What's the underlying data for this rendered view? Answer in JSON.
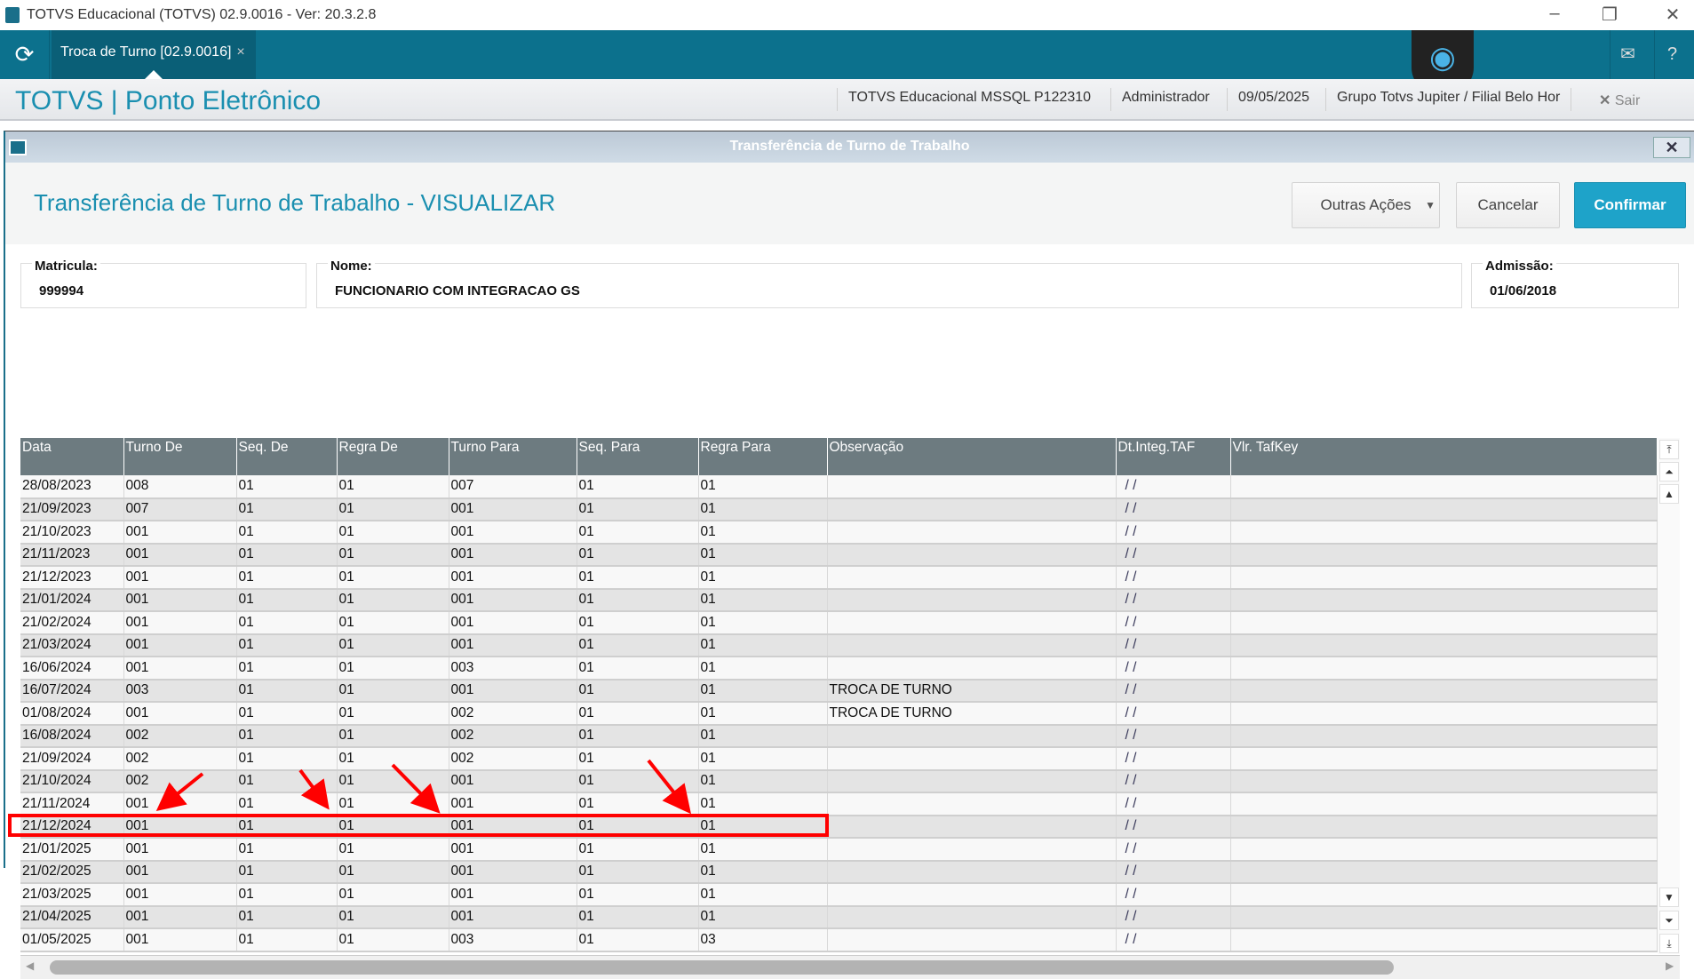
{
  "window": {
    "title": "TOTVS Educacional (TOTVS) 02.9.0016 - Ver: 20.3.2.8"
  },
  "tabbar": {
    "tab_label": "Troca de Turno [02.9.0016]",
    "tab_close": "×"
  },
  "header": {
    "app_title": "TOTVS | Ponto Eletrônico",
    "database": "TOTVS Educacional MSSQL P122310",
    "user": "Administrador",
    "date": "09/05/2025",
    "branch": "Grupo Totvs Jupiter / Filial Belo Hor",
    "logout": "Sair"
  },
  "dialog": {
    "title": "Transferência de Turno de Trabalho",
    "heading": "Transferência de Turno de Trabalho - VISUALIZAR",
    "other_actions": "Outras Ações",
    "cancel": "Cancelar",
    "confirm": "Confirmar"
  },
  "form": {
    "matricula_label": "Matricula:",
    "matricula": "999994",
    "nome_label": "Nome:",
    "nome": "FUNCIONARIO COM INTEGRACAO GS",
    "admissao_label": "Admissão:",
    "admissao": "01/06/2018"
  },
  "grid": {
    "columns": [
      "Data",
      "Turno De",
      "Seq. De",
      "Regra De",
      "Turno Para",
      "Seq. Para",
      "Regra Para",
      "Observação",
      "Dt.Integ.TAF",
      "Vlr. TafKey"
    ],
    "rows": [
      [
        "28/08/2023",
        "008",
        "01",
        "01",
        "007",
        "01",
        "01",
        "",
        "/ /",
        ""
      ],
      [
        "21/09/2023",
        "007",
        "01",
        "01",
        "001",
        "01",
        "01",
        "",
        "/ /",
        ""
      ],
      [
        "21/10/2023",
        "001",
        "01",
        "01",
        "001",
        "01",
        "01",
        "",
        "/ /",
        ""
      ],
      [
        "21/11/2023",
        "001",
        "01",
        "01",
        "001",
        "01",
        "01",
        "",
        "/ /",
        ""
      ],
      [
        "21/12/2023",
        "001",
        "01",
        "01",
        "001",
        "01",
        "01",
        "",
        "/ /",
        ""
      ],
      [
        "21/01/2024",
        "001",
        "01",
        "01",
        "001",
        "01",
        "01",
        "",
        "/ /",
        ""
      ],
      [
        "21/02/2024",
        "001",
        "01",
        "01",
        "001",
        "01",
        "01",
        "",
        "/ /",
        ""
      ],
      [
        "21/03/2024",
        "001",
        "01",
        "01",
        "001",
        "01",
        "01",
        "",
        "/ /",
        ""
      ],
      [
        "16/06/2024",
        "001",
        "01",
        "01",
        "003",
        "01",
        "01",
        "",
        "/ /",
        ""
      ],
      [
        "16/07/2024",
        "003",
        "01",
        "01",
        "001",
        "01",
        "01",
        "TROCA DE TURNO",
        "/ /",
        ""
      ],
      [
        "01/08/2024",
        "001",
        "01",
        "01",
        "002",
        "01",
        "01",
        "TROCA DE TURNO",
        "/ /",
        ""
      ],
      [
        "16/08/2024",
        "002",
        "01",
        "01",
        "002",
        "01",
        "01",
        "",
        "/ /",
        ""
      ],
      [
        "21/09/2024",
        "002",
        "01",
        "01",
        "002",
        "01",
        "01",
        "",
        "/ /",
        ""
      ],
      [
        "21/10/2024",
        "002",
        "01",
        "01",
        "001",
        "01",
        "01",
        "",
        "/ /",
        ""
      ],
      [
        "21/11/2024",
        "001",
        "01",
        "01",
        "001",
        "01",
        "01",
        "",
        "/ /",
        ""
      ],
      [
        "21/12/2024",
        "001",
        "01",
        "01",
        "001",
        "01",
        "01",
        "",
        "/ /",
        ""
      ],
      [
        "21/01/2025",
        "001",
        "01",
        "01",
        "001",
        "01",
        "01",
        "",
        "/ /",
        ""
      ],
      [
        "21/02/2025",
        "001",
        "01",
        "01",
        "001",
        "01",
        "01",
        "",
        "/ /",
        ""
      ],
      [
        "21/03/2025",
        "001",
        "01",
        "01",
        "001",
        "01",
        "01",
        "",
        "/ /",
        ""
      ],
      [
        "21/04/2025",
        "001",
        "01",
        "01",
        "001",
        "01",
        "01",
        "",
        "/ /",
        ""
      ],
      [
        "01/05/2025",
        "001",
        "01",
        "01",
        "003",
        "01",
        "03",
        "",
        "/ /",
        ""
      ]
    ]
  },
  "annotation": {
    "highlight_color": "#ff0000"
  }
}
